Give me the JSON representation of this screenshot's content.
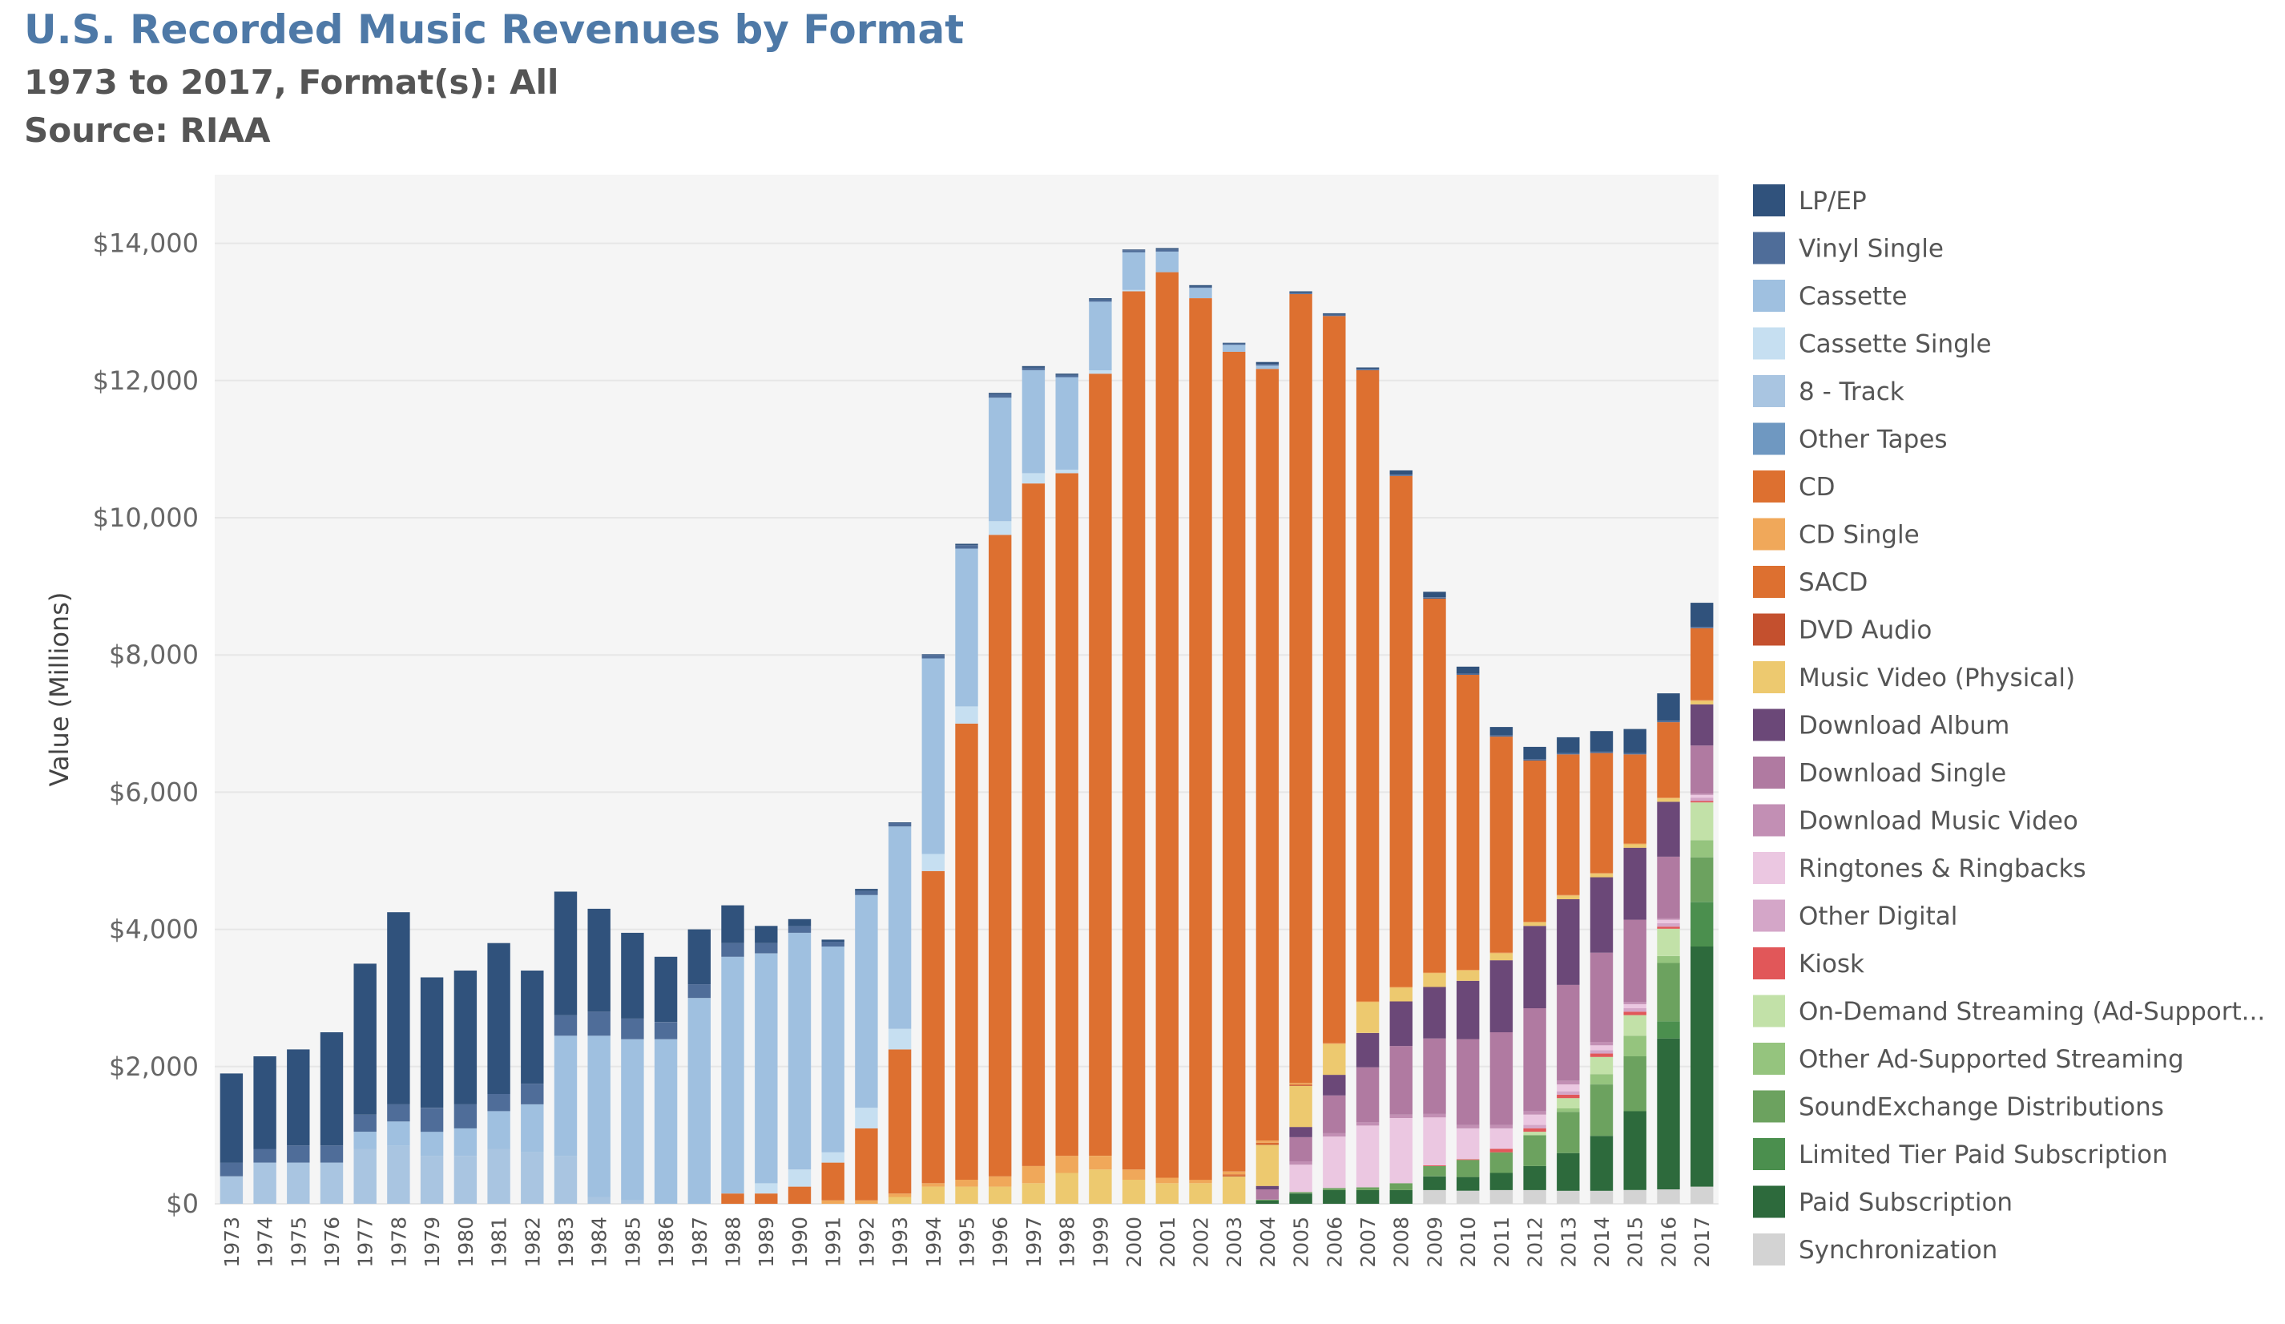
{
  "header": {
    "title": "U.S. Recorded Music Revenues by Format",
    "subtitle": "1973 to 2017, Format(s): All",
    "source": "Source: RIAA"
  },
  "chart_data": {
    "type": "bar",
    "stacked": true,
    "ylabel": "Value (Millions)",
    "ylim": [
      0,
      15000
    ],
    "yticks": [
      0,
      2000,
      4000,
      6000,
      8000,
      10000,
      12000,
      14000
    ],
    "ytick_labels": [
      "$0",
      "$2,000",
      "$4,000",
      "$6,000",
      "$8,000",
      "$10,000",
      "$12,000",
      "$14,000"
    ],
    "legend_position": "right",
    "categories": [
      "1973",
      "1974",
      "1975",
      "1976",
      "1977",
      "1978",
      "1979",
      "1980",
      "1981",
      "1982",
      "1983",
      "1984",
      "1985",
      "1986",
      "1987",
      "1988",
      "1989",
      "1990",
      "1991",
      "1992",
      "1993",
      "1994",
      "1995",
      "1996",
      "1997",
      "1998",
      "1999",
      "2000",
      "2001",
      "2002",
      "2003",
      "2004",
      "2005",
      "2006",
      "2007",
      "2008",
      "2009",
      "2010",
      "2011",
      "2012",
      "2013",
      "2014",
      "2015",
      "2016",
      "2017"
    ],
    "series": [
      {
        "name": "Synchronization",
        "color": "#d3d3d3",
        "values": [
          0,
          0,
          0,
          0,
          0,
          0,
          0,
          0,
          0,
          0,
          0,
          0,
          0,
          0,
          0,
          0,
          0,
          0,
          0,
          0,
          0,
          0,
          0,
          0,
          0,
          0,
          0,
          0,
          0,
          0,
          0,
          0,
          0,
          0,
          0,
          0,
          200,
          190,
          200,
          200,
          190,
          190,
          200,
          210,
          250
        ]
      },
      {
        "name": "Paid Subscription",
        "color": "#2d6a3c",
        "values": [
          0,
          0,
          0,
          0,
          0,
          0,
          0,
          0,
          0,
          0,
          0,
          0,
          0,
          0,
          0,
          0,
          0,
          0,
          0,
          0,
          0,
          0,
          0,
          0,
          0,
          0,
          0,
          0,
          0,
          0,
          0,
          50,
          150,
          200,
          200,
          200,
          200,
          200,
          250,
          350,
          550,
          800,
          1150,
          2200,
          3500
        ]
      },
      {
        "name": "Limited Tier Paid Subscription",
        "color": "#4b8f4e",
        "values": [
          0,
          0,
          0,
          0,
          0,
          0,
          0,
          0,
          0,
          0,
          0,
          0,
          0,
          0,
          0,
          0,
          0,
          0,
          0,
          0,
          0,
          0,
          0,
          0,
          0,
          0,
          0,
          0,
          0,
          0,
          0,
          0,
          0,
          0,
          0,
          0,
          0,
          0,
          0,
          0,
          0,
          0,
          0,
          250,
          650
        ]
      },
      {
        "name": "SoundExchange Distributions",
        "color": "#6ca25f",
        "values": [
          0,
          0,
          0,
          0,
          0,
          0,
          0,
          0,
          0,
          0,
          0,
          0,
          0,
          0,
          0,
          0,
          0,
          0,
          0,
          0,
          0,
          0,
          0,
          0,
          0,
          0,
          0,
          0,
          0,
          0,
          0,
          10,
          20,
          30,
          40,
          100,
          150,
          250,
          300,
          450,
          600,
          750,
          800,
          850,
          650
        ]
      },
      {
        "name": "Other Ad-Supported Streaming",
        "color": "#95c47e",
        "values": [
          0,
          0,
          0,
          0,
          0,
          0,
          0,
          0,
          0,
          0,
          0,
          0,
          0,
          0,
          0,
          0,
          0,
          0,
          0,
          0,
          0,
          0,
          0,
          0,
          0,
          0,
          0,
          0,
          0,
          0,
          0,
          0,
          0,
          0,
          0,
          0,
          0,
          0,
          0,
          0,
          50,
          150,
          300,
          100,
          250
        ]
      },
      {
        "name": "On-Demand Streaming (Ad-Supported)",
        "color": "#c2e1a8",
        "values": [
          0,
          0,
          0,
          0,
          0,
          0,
          0,
          0,
          0,
          0,
          0,
          0,
          0,
          0,
          0,
          0,
          0,
          0,
          0,
          0,
          0,
          0,
          0,
          0,
          0,
          0,
          0,
          0,
          0,
          0,
          0,
          0,
          0,
          0,
          0,
          0,
          0,
          0,
          0,
          50,
          150,
          250,
          300,
          400,
          550
        ]
      },
      {
        "name": "Kiosk",
        "color": "#e15759",
        "values": [
          0,
          0,
          0,
          0,
          0,
          0,
          0,
          0,
          0,
          0,
          0,
          0,
          0,
          0,
          0,
          0,
          0,
          0,
          0,
          0,
          0,
          0,
          0,
          0,
          0,
          0,
          0,
          0,
          0,
          0,
          0,
          0,
          0,
          0,
          0,
          0,
          10,
          10,
          50,
          50,
          50,
          50,
          50,
          30,
          20
        ]
      },
      {
        "name": "Other Digital",
        "color": "#d4a6c8",
        "values": [
          0,
          0,
          0,
          0,
          0,
          0,
          0,
          0,
          0,
          0,
          0,
          0,
          0,
          0,
          0,
          0,
          0,
          0,
          0,
          0,
          0,
          0,
          0,
          0,
          0,
          0,
          0,
          0,
          0,
          0,
          0,
          0,
          0,
          0,
          0,
          0,
          0,
          0,
          0,
          50,
          50,
          50,
          50,
          50,
          50
        ]
      },
      {
        "name": "Ringtones & Ringbacks",
        "color": "#ebc7e1",
        "values": [
          0,
          0,
          0,
          0,
          0,
          0,
          0,
          0,
          0,
          0,
          0,
          0,
          0,
          0,
          0,
          0,
          0,
          0,
          0,
          0,
          0,
          0,
          0,
          0,
          0,
          0,
          0,
          0,
          0,
          0,
          0,
          0,
          400,
          750,
          900,
          950,
          700,
          450,
          300,
          150,
          100,
          70,
          60,
          50,
          40
        ]
      },
      {
        "name": "Download Music Video",
        "color": "#c28fb4",
        "values": [
          0,
          0,
          0,
          0,
          0,
          0,
          0,
          0,
          0,
          0,
          0,
          0,
          0,
          0,
          0,
          0,
          0,
          0,
          0,
          0,
          0,
          0,
          0,
          0,
          0,
          0,
          0,
          0,
          0,
          0,
          0,
          0,
          50,
          50,
          50,
          50,
          50,
          50,
          50,
          50,
          50,
          50,
          30,
          20,
          20
        ]
      },
      {
        "name": "Download Single",
        "color": "#b07aa1",
        "values": [
          0,
          0,
          0,
          0,
          0,
          0,
          0,
          0,
          0,
          0,
          0,
          0,
          0,
          0,
          0,
          0,
          0,
          0,
          0,
          0,
          0,
          0,
          0,
          0,
          0,
          0,
          0,
          0,
          0,
          0,
          0,
          150,
          350,
          550,
          800,
          1000,
          1100,
          1250,
          1350,
          1500,
          1400,
          1300,
          1200,
          900,
          700
        ]
      },
      {
        "name": "Download Album",
        "color": "#6b4878",
        "values": [
          0,
          0,
          0,
          0,
          0,
          0,
          0,
          0,
          0,
          0,
          0,
          0,
          0,
          0,
          0,
          0,
          0,
          0,
          0,
          0,
          0,
          0,
          0,
          0,
          0,
          0,
          0,
          0,
          0,
          0,
          0,
          50,
          150,
          300,
          500,
          650,
          750,
          850,
          1050,
          1200,
          1250,
          1100,
          1050,
          800,
          600
        ]
      },
      {
        "name": "Music Video (Physical)",
        "color": "#edc96f",
        "values": [
          0,
          0,
          0,
          0,
          0,
          0,
          0,
          0,
          0,
          0,
          0,
          0,
          0,
          0,
          0,
          0,
          0,
          0,
          0,
          0,
          100,
          250,
          250,
          250,
          300,
          450,
          500,
          350,
          300,
          300,
          400,
          600,
          600,
          450,
          450,
          200,
          200,
          150,
          100,
          50,
          50,
          50,
          50,
          50,
          50
        ]
      },
      {
        "name": "DVD Audio",
        "color": "#c4502e",
        "values": [
          0,
          0,
          0,
          0,
          0,
          0,
          0,
          0,
          0,
          0,
          0,
          0,
          0,
          0,
          0,
          0,
          0,
          0,
          0,
          0,
          0,
          0,
          0,
          0,
          0,
          0,
          0,
          0,
          0,
          0,
          10,
          10,
          10,
          0,
          0,
          0,
          0,
          0,
          0,
          0,
          0,
          0,
          0,
          0,
          0
        ]
      },
      {
        "name": "SACD",
        "color": "#dd7030",
        "values": [
          0,
          0,
          0,
          0,
          0,
          0,
          0,
          0,
          0,
          0,
          0,
          0,
          0,
          0,
          0,
          0,
          0,
          0,
          0,
          0,
          0,
          0,
          0,
          0,
          0,
          0,
          0,
          0,
          0,
          0,
          20,
          20,
          10,
          0,
          0,
          0,
          0,
          0,
          0,
          0,
          0,
          0,
          0,
          0,
          0
        ]
      },
      {
        "name": "CD Single",
        "color": "#f0a85a",
        "values": [
          0,
          0,
          0,
          0,
          0,
          0,
          0,
          0,
          0,
          0,
          0,
          0,
          0,
          0,
          0,
          0,
          0,
          0,
          50,
          50,
          50,
          50,
          100,
          150,
          250,
          250,
          200,
          150,
          80,
          50,
          40,
          30,
          20,
          10,
          10,
          10,
          10,
          10,
          10,
          10,
          10,
          10,
          10,
          10,
          10
        ]
      },
      {
        "name": "CD",
        "color": "#dd7030",
        "values": [
          0,
          0,
          0,
          0,
          0,
          0,
          0,
          0,
          0,
          0,
          0,
          0,
          0,
          0,
          0,
          150,
          150,
          250,
          550,
          1050,
          2100,
          4550,
          6650,
          9350,
          9950,
          9950,
          11400,
          12800,
          13200,
          12850,
          11950,
          11250,
          11500,
          10600,
          9200,
          7450,
          5450,
          4300,
          3150,
          2350,
          2050,
          1750,
          1300,
          1100,
          1050
        ]
      },
      {
        "name": "Other Tapes",
        "color": "#6f98c1",
        "values": [
          0,
          0,
          0,
          0,
          0,
          0,
          0,
          0,
          0,
          0,
          0,
          0,
          0,
          0,
          0,
          0,
          0,
          0,
          0,
          0,
          0,
          0,
          0,
          0,
          0,
          0,
          0,
          0,
          0,
          0,
          0,
          0,
          0,
          0,
          0,
          0,
          0,
          0,
          0,
          0,
          0,
          0,
          0,
          0,
          0
        ]
      },
      {
        "name": "8 - Track",
        "color": "#a9c5e1",
        "values": [
          400,
          600,
          600,
          600,
          800,
          850,
          700,
          700,
          800,
          750,
          700,
          100,
          50,
          0,
          0,
          0,
          0,
          0,
          0,
          0,
          0,
          0,
          0,
          0,
          0,
          0,
          0,
          0,
          0,
          0,
          0,
          0,
          0,
          0,
          0,
          0,
          0,
          0,
          0,
          0,
          0,
          0,
          0,
          0,
          0
        ]
      },
      {
        "name": "Cassette Single",
        "color": "#c6dff1",
        "values": [
          0,
          0,
          0,
          0,
          0,
          0,
          0,
          0,
          0,
          0,
          0,
          0,
          0,
          0,
          0,
          0,
          150,
          250,
          150,
          300,
          300,
          250,
          250,
          200,
          150,
          50,
          50,
          20,
          0,
          0,
          0,
          0,
          0,
          0,
          0,
          0,
          0,
          0,
          0,
          0,
          0,
          0,
          0,
          0,
          0
        ]
      },
      {
        "name": "Cassette",
        "color": "#9fc0e0",
        "values": [
          0,
          0,
          0,
          0,
          250,
          350,
          350,
          400,
          550,
          700,
          1750,
          2350,
          2350,
          2400,
          3000,
          3450,
          3350,
          3450,
          3000,
          3100,
          2950,
          2850,
          2300,
          1800,
          1500,
          1350,
          1000,
          550,
          300,
          150,
          100,
          50,
          0,
          0,
          0,
          0,
          0,
          0,
          0,
          0,
          0,
          0,
          0,
          0,
          0
        ]
      },
      {
        "name": "Vinyl Single",
        "color": "#4f6d99",
        "values": [
          200,
          200,
          250,
          250,
          250,
          250,
          350,
          350,
          250,
          300,
          300,
          350,
          300,
          250,
          200,
          200,
          150,
          100,
          70,
          60,
          50,
          50,
          50,
          50,
          40,
          30,
          30,
          30,
          30,
          20,
          20,
          20,
          20,
          20,
          20,
          20,
          20,
          20,
          20,
          20,
          20,
          20,
          20,
          20,
          20
        ]
      },
      {
        "name": "LP/EP",
        "color": "#30527c",
        "values": [
          1300,
          1350,
          1400,
          1650,
          2200,
          2800,
          1900,
          1950,
          2200,
          1650,
          1800,
          1500,
          1250,
          950,
          800,
          550,
          250,
          100,
          30,
          30,
          10,
          10,
          20,
          20,
          20,
          20,
          20,
          10,
          20,
          20,
          10,
          30,
          20,
          20,
          20,
          60,
          80,
          100,
          120,
          180,
          230,
          300,
          350,
          400,
          350
        ]
      }
    ]
  },
  "legend": [
    {
      "name": "LP/EP",
      "color": "#30527c"
    },
    {
      "name": "Vinyl Single",
      "color": "#4f6d99"
    },
    {
      "name": "Cassette",
      "color": "#9fc0e0"
    },
    {
      "name": "Cassette Single",
      "color": "#c6dff1"
    },
    {
      "name": "8 - Track",
      "color": "#a9c5e1"
    },
    {
      "name": "Other Tapes",
      "color": "#6f98c1"
    },
    {
      "name": "CD",
      "color": "#dd7030"
    },
    {
      "name": "CD Single",
      "color": "#f0a85a"
    },
    {
      "name": "SACD",
      "color": "#dd7030"
    },
    {
      "name": "DVD Audio",
      "color": "#c4502e"
    },
    {
      "name": "Music Video (Physical)",
      "color": "#edc96f"
    },
    {
      "name": "Download Album",
      "color": "#6b4878"
    },
    {
      "name": "Download Single",
      "color": "#b07aa1"
    },
    {
      "name": "Download Music Video",
      "color": "#c28fb4"
    },
    {
      "name": "Ringtones & Ringbacks",
      "color": "#ebc7e1"
    },
    {
      "name": "Other Digital",
      "color": "#d4a6c8"
    },
    {
      "name": "Kiosk",
      "color": "#e15759"
    },
    {
      "name": "On-Demand Streaming (Ad-Support...",
      "color": "#c2e1a8"
    },
    {
      "name": "Other Ad-Supported Streaming",
      "color": "#95c47e"
    },
    {
      "name": "SoundExchange Distributions",
      "color": "#6ca25f"
    },
    {
      "name": "Limited Tier Paid Subscription",
      "color": "#4b8f4e"
    },
    {
      "name": "Paid Subscription",
      "color": "#2d6a3c"
    },
    {
      "name": "Synchronization",
      "color": "#d3d3d3"
    }
  ]
}
